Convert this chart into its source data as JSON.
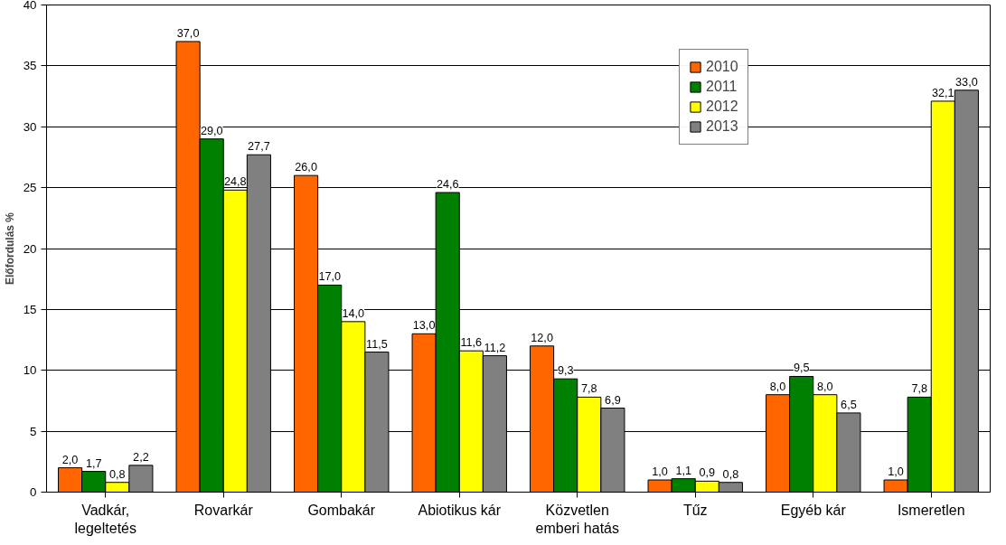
{
  "chart_data": {
    "type": "bar",
    "ylabel": "Előfordulás %",
    "categories": [
      "Vadkár,\nlegeltetés",
      "Rovarkár",
      "Gombakár",
      "Abiotikus kár",
      "Közvetlen\nemberi hatás",
      "Tűz",
      "Egyéb kár",
      "Ismeretlen"
    ],
    "series": [
      {
        "name": "2010",
        "color": "#ff6600",
        "values": [
          2.0,
          37.0,
          26.0,
          13.0,
          12.0,
          1.0,
          8.0,
          1.0
        ],
        "value_labels": [
          "2,0",
          "37,0",
          "26,0",
          "13,0",
          "12,0",
          "1,0",
          "8,0",
          "1,0"
        ]
      },
      {
        "name": "2011",
        "color": "#008000",
        "values": [
          1.7,
          29.0,
          17.0,
          24.6,
          9.3,
          1.1,
          9.5,
          7.8
        ],
        "value_labels": [
          "1,7",
          "29,0",
          "17,0",
          "24,6",
          "9,3",
          "1,1",
          "9,5",
          "7,8"
        ]
      },
      {
        "name": "2012",
        "color": "#ffff00",
        "values": [
          0.8,
          24.8,
          14.0,
          11.6,
          7.8,
          0.9,
          8.0,
          32.1
        ],
        "value_labels": [
          "0,8",
          "24,8",
          "14,0",
          "11,6",
          "7,8",
          "0,9",
          "8,0",
          "32,1"
        ]
      },
      {
        "name": "2013",
        "color": "#808080",
        "values": [
          2.2,
          27.7,
          11.5,
          11.2,
          6.9,
          0.8,
          6.5,
          33.0
        ],
        "value_labels": [
          "2,2",
          "27,7",
          "11,5",
          "11,2",
          "6,9",
          "0,8",
          "6,5",
          "33,0"
        ]
      }
    ],
    "ylim": [
      0,
      40
    ],
    "yticks": [
      0,
      5,
      10,
      15,
      20,
      25,
      30,
      35,
      40
    ],
    "grid": "y",
    "legend": "top right"
  }
}
